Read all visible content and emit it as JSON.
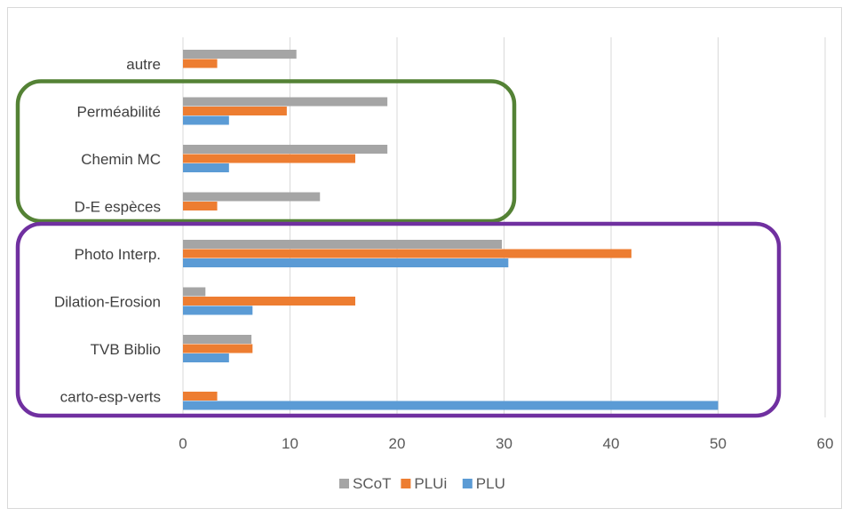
{
  "chart_data": {
    "type": "bar",
    "orientation": "horizontal",
    "categories": [
      "autre",
      "Perméabilité",
      "Chemin MC",
      "D-E espèces",
      "Photo Interp.",
      "Dilation-Erosion",
      "TVB Biblio",
      "carto-esp-verts"
    ],
    "series": [
      {
        "name": "SCoT",
        "color": "#a5a5a5",
        "values": [
          10.6,
          19.1,
          19.1,
          12.8,
          29.8,
          2.1,
          6.4,
          0
        ]
      },
      {
        "name": "PLUi",
        "color": "#ed7d31",
        "values": [
          3.2,
          9.7,
          16.1,
          3.2,
          41.9,
          16.1,
          6.5,
          3.2
        ]
      },
      {
        "name": "PLU",
        "color": "#5b9bd5",
        "values": [
          0,
          4.3,
          4.3,
          0,
          30.4,
          6.5,
          4.3,
          50
        ]
      }
    ],
    "xlim": [
      0,
      60
    ],
    "xticks": [
      0,
      10,
      20,
      30,
      40,
      50,
      60
    ],
    "grid": true,
    "legend_position": "bottom",
    "highlight_boxes": [
      {
        "color": "#548235",
        "categories": [
          "Perméabilité",
          "Chemin MC",
          "D-E espèces"
        ]
      },
      {
        "color": "#7030a0",
        "categories": [
          "Photo Interp.",
          "Dilation-Erosion",
          "TVB Biblio",
          "carto-esp-verts"
        ]
      }
    ]
  }
}
